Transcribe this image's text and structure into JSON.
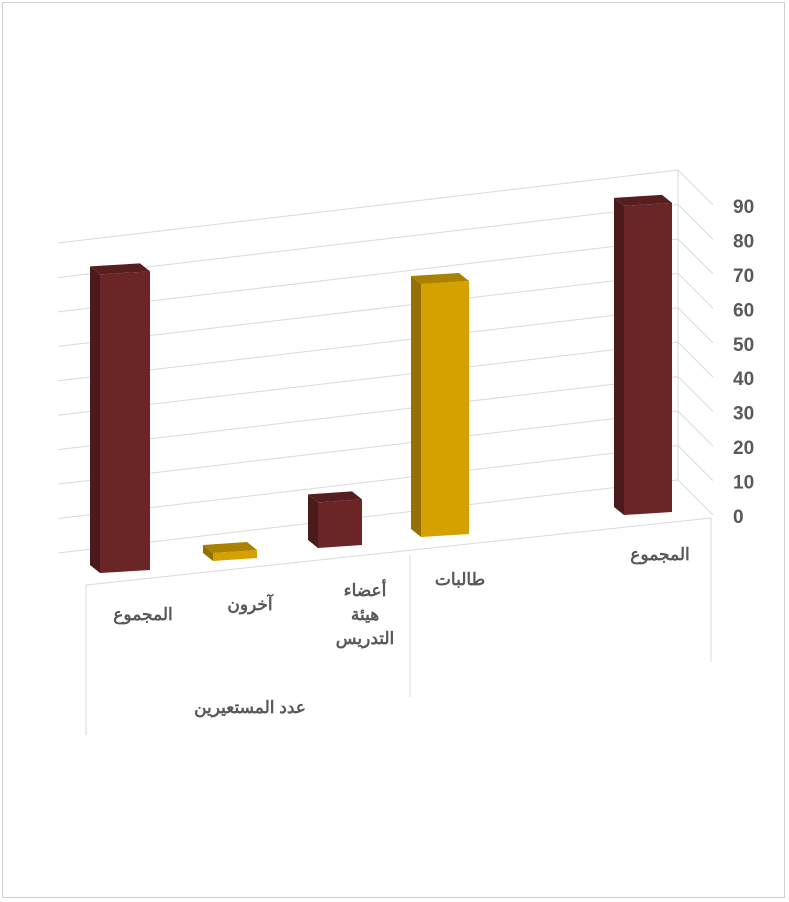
{
  "chart_data": {
    "type": "bar",
    "title": "",
    "xlabel": "",
    "ylabel": "",
    "ylim": [
      0,
      90
    ],
    "yticks": [
      0,
      10,
      20,
      30,
      40,
      50,
      60,
      70,
      80,
      90
    ],
    "grid": true,
    "legend": "none",
    "categories": [
      {
        "label": "المجموع",
        "lines": [
          "المجموع"
        ],
        "value": 85,
        "color": "#6B2527"
      },
      {
        "label": "آخرون",
        "lines": [
          "آخرون"
        ],
        "value": 2,
        "color": "#D4A100"
      },
      {
        "label": "أعضاء هيئة التدريس",
        "lines": [
          "أعضاء",
          "هيئة",
          "التدريس"
        ],
        "value": 13,
        "color": "#6B2527"
      },
      {
        "label": "طالبات",
        "lines": [
          "طالبات"
        ],
        "value": 72,
        "color": "#D4A100"
      },
      {
        "label": "المجموع",
        "lines": [
          "المجموع"
        ],
        "value": 88,
        "color": "#6B2527"
      }
    ],
    "groups": [
      {
        "label": "عدد المستعيرين",
        "categories": [
          0,
          1,
          2
        ]
      }
    ]
  }
}
